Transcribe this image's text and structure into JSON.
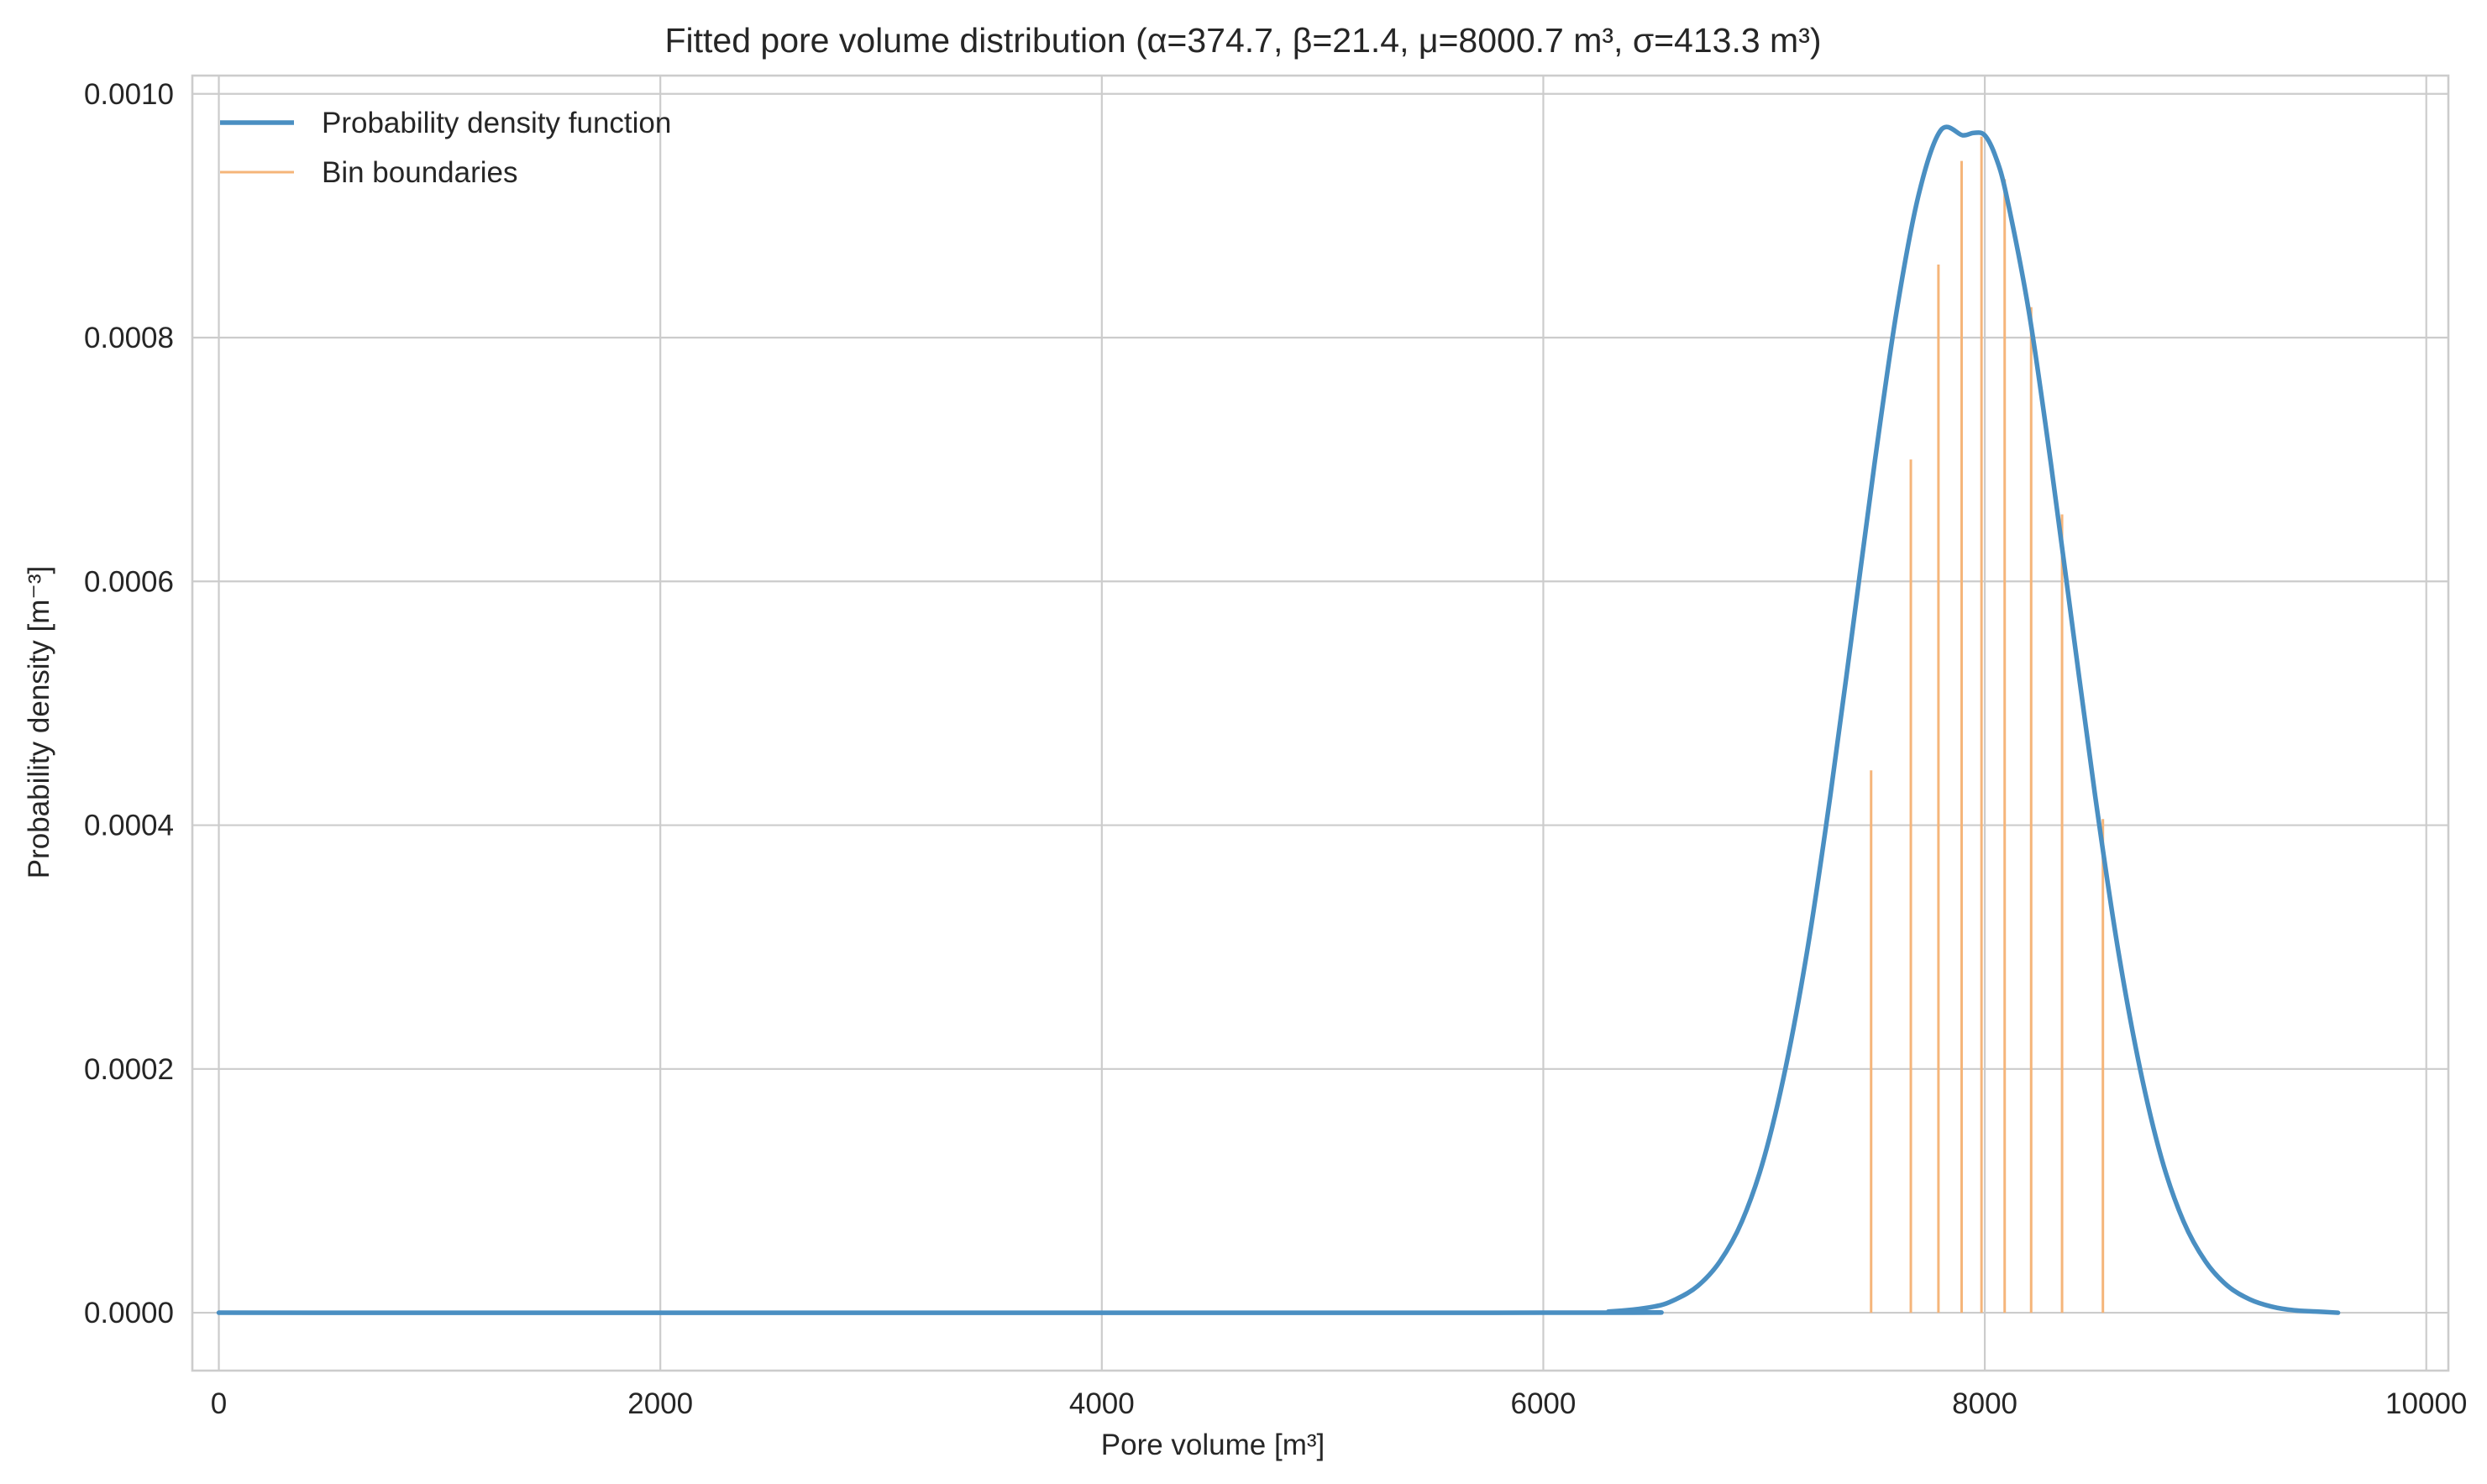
{
  "chart_data": {
    "type": "line",
    "title": "Fitted pore volume distribution (α=374.7, β=21.4, μ=8000.7 m³, σ=413.3 m³)",
    "xlabel": "Pore volume [m³]",
    "ylabel": "Probability density [m⁻³]",
    "xlim": [
      -120,
      10100
    ],
    "ylim": [
      -4.75e-05,
      0.001015
    ],
    "x_ticks": [
      0,
      2000,
      4000,
      6000,
      8000,
      10000
    ],
    "x_tick_labels": [
      "0",
      "2000",
      "4000",
      "6000",
      "8000",
      "10000"
    ],
    "y_ticks": [
      0.0,
      0.0002,
      0.0004,
      0.0006,
      0.0008,
      0.001
    ],
    "y_tick_labels": [
      "0.0000",
      "0.0002",
      "0.0004",
      "0.0006",
      "0.0008",
      "0.0010"
    ],
    "grid": true,
    "legend_position": "upper-left",
    "legend": [
      "Probability density function",
      "Bin boundaries"
    ],
    "colors": {
      "pdf_line": "#4a8fc2",
      "bin_lines": "#f5b57a",
      "grid": "#cccccc",
      "frame": "#cccccc",
      "text": "#262626",
      "background": "#ffffff"
    },
    "series": [
      {
        "name": "Probability density function",
        "style": "line",
        "x": [
          0,
          6000,
          6300,
          6500,
          6600,
          6700,
          6800,
          6900,
          7000,
          7100,
          7200,
          7300,
          7400,
          7500,
          7600,
          7700,
          7800,
          7900,
          7950,
          8000,
          8050,
          8100,
          8200,
          8300,
          8400,
          8500,
          8600,
          8700,
          8800,
          8900,
          9000,
          9100,
          9200,
          9300,
          9400,
          9500,
          9600
        ],
        "y": [
          0.0,
          0.0,
          1e-06,
          5e-06,
          1.1e-05,
          2.2e-05,
          4.2e-05,
          7.5e-05,
          0.000127,
          0.000203,
          0.000302,
          0.000424,
          0.000559,
          0.000696,
          0.000821,
          0.000917,
          0.00097,
          0.000966,
          0.000968,
          0.000966,
          0.000948,
          0.000915,
          0.000821,
          0.000696,
          0.000559,
          0.000424,
          0.000302,
          0.000203,
          0.000127,
          7.5e-05,
          4.2e-05,
          2.2e-05,
          1.1e-05,
          5e-06,
          2e-06,
          1e-06,
          0.0
        ]
      },
      {
        "name": "Bin boundaries",
        "style": "vlines",
        "x": [
          7485,
          7665,
          7790,
          7895,
          7985,
          8090,
          8210,
          8350,
          8535
        ],
        "y": [
          0.000445,
          0.0007,
          0.00086,
          0.000945,
          0.000965,
          0.00093,
          0.000825,
          0.000655,
          0.000405
        ]
      }
    ]
  }
}
